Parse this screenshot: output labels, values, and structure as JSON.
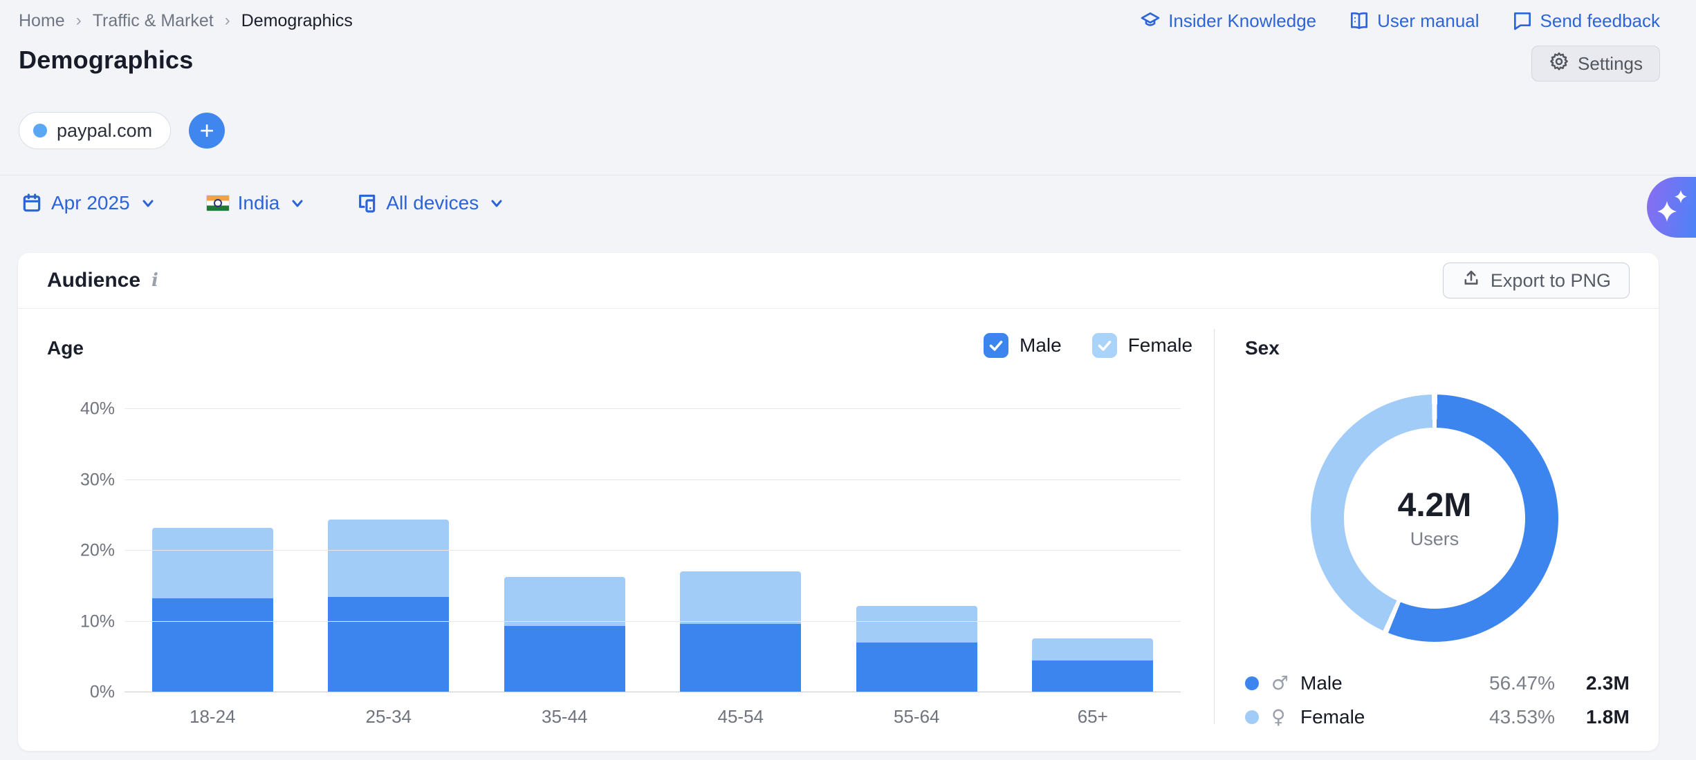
{
  "breadcrumb": {
    "items": [
      "Home",
      "Traffic & Market",
      "Demographics"
    ]
  },
  "header": {
    "title": "Demographics",
    "links": [
      {
        "label": "Insider Knowledge",
        "icon": "graduation-cap-icon"
      },
      {
        "label": "User manual",
        "icon": "book-icon"
      },
      {
        "label": "Send feedback",
        "icon": "speech-bubble-icon"
      }
    ],
    "settings_label": "Settings"
  },
  "targets": {
    "domain": "paypal.com",
    "add_label": "+"
  },
  "filters": {
    "date": "Apr 2025",
    "country": "India",
    "devices": "All devices"
  },
  "audience_card": {
    "title": "Audience",
    "export_label": "Export to PNG"
  },
  "age_section": {
    "title": "Age",
    "legend": [
      {
        "label": "Male",
        "checked": true
      },
      {
        "label": "Female",
        "checked": true
      }
    ]
  },
  "sex_section": {
    "title": "Sex",
    "total": "4.2M",
    "total_label": "Users",
    "rows": [
      {
        "label": "Male",
        "symbol": "♂",
        "percent": "56.47%",
        "value": "2.3M"
      },
      {
        "label": "Female",
        "symbol": "♀",
        "percent": "43.53%",
        "value": "1.8M"
      }
    ]
  },
  "colors": {
    "male": "#3d85ee",
    "female": "#a2ccf8",
    "male_checkbox": "#3c85ee",
    "female_checkbox": "#a9d3f8",
    "link_blue": "#2c63d6"
  },
  "chart_data": [
    {
      "type": "bar",
      "stacked": true,
      "title": "Age",
      "categories": [
        "18-24",
        "25-34",
        "35-44",
        "45-54",
        "55-64",
        "65+"
      ],
      "series": [
        {
          "name": "Male",
          "values": [
            13.2,
            13.4,
            9.3,
            9.6,
            6.9,
            4.4
          ]
        },
        {
          "name": "Female",
          "values": [
            9.9,
            10.9,
            6.9,
            7.4,
            5.2,
            3.1
          ]
        }
      ],
      "ylabel": "%",
      "ylim": [
        0,
        40
      ],
      "yticks": [
        "0%",
        "10%",
        "20%",
        "30%",
        "40%"
      ],
      "grid": true,
      "legend_position": "top-right"
    },
    {
      "type": "pie",
      "donut": true,
      "title": "Sex",
      "labels": [
        "Male",
        "Female"
      ],
      "values": [
        56.47,
        43.53
      ],
      "units": [
        "2.3M",
        "1.8M"
      ],
      "center_label": "4.2M",
      "center_sublabel": "Users",
      "legend_position": "bottom-left"
    }
  ]
}
